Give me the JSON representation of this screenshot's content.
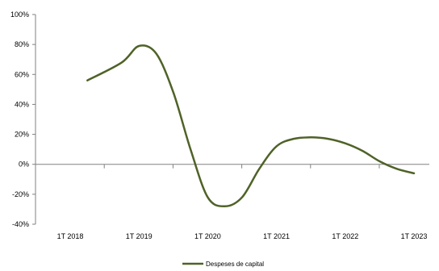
{
  "chart_data": {
    "type": "line",
    "title": "",
    "xlabel": "",
    "ylabel": "",
    "ylim": [
      -40,
      100
    ],
    "y_ticks": [
      -40,
      -20,
      0,
      20,
      40,
      60,
      80,
      100
    ],
    "y_tick_labels": [
      "-40%",
      "-20%",
      "0%",
      "20%",
      "40%",
      "60%",
      "80%",
      "100%"
    ],
    "x_tick_labels": [
      "1T 2018",
      "1T 2019",
      "1T 2020",
      "1T 2021",
      "1T 2022",
      "1T 2023"
    ],
    "x_ticks": [
      "2018-01",
      "2019-01",
      "2020-01",
      "2021-01",
      "2022-01",
      "2023-01"
    ],
    "grid": false,
    "smooth": true,
    "legend_position": "bottom-center",
    "series": [
      {
        "name": "Despeses de capital",
        "color": "#4f6228",
        "points": [
          {
            "x": "2018-04",
            "y": 56
          },
          {
            "x": "2018-10",
            "y": 68
          },
          {
            "x": "2019-01",
            "y": 79
          },
          {
            "x": "2019-04",
            "y": 74
          },
          {
            "x": "2019-07",
            "y": 48
          },
          {
            "x": "2019-10",
            "y": 10
          },
          {
            "x": "2020-01",
            "y": -22
          },
          {
            "x": "2020-04",
            "y": -28
          },
          {
            "x": "2020-07",
            "y": -22
          },
          {
            "x": "2020-10",
            "y": -3
          },
          {
            "x": "2021-01",
            "y": 12
          },
          {
            "x": "2021-04",
            "y": 17
          },
          {
            "x": "2021-07",
            "y": 18
          },
          {
            "x": "2021-10",
            "y": 17
          },
          {
            "x": "2022-01",
            "y": 14
          },
          {
            "x": "2022-04",
            "y": 9
          },
          {
            "x": "2022-07",
            "y": 2
          },
          {
            "x": "2022-10",
            "y": -3
          },
          {
            "x": "2023-01",
            "y": -6
          }
        ]
      }
    ]
  }
}
